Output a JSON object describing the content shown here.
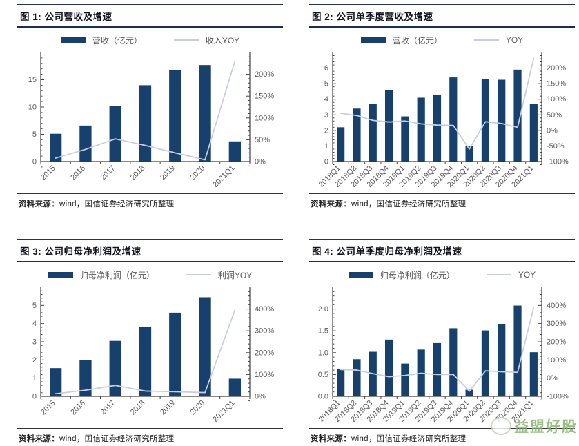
{
  "colors": {
    "bar": "#17406D",
    "line": "#C9CDE2",
    "axis_line": "#404040",
    "axis_text": "#595959",
    "watermark_green": "#7FAE66"
  },
  "watermark": {
    "text": "益盟好股"
  },
  "chart_data": [
    {
      "type": "bar",
      "title": "图 1: 公司营收及增速",
      "legend_bar": "营收（亿元）",
      "legend_line": "收入YOY",
      "categories": [
        "2015",
        "2016",
        "2017",
        "2018",
        "2019",
        "2020",
        "2021Q1"
      ],
      "series": [
        {
          "name": "营收（亿元）",
          "type": "bar",
          "axis": "left",
          "values": [
            5.1,
            6.6,
            10.2,
            14.0,
            16.8,
            17.7,
            3.7
          ]
        },
        {
          "name": "收入YOY",
          "type": "line",
          "axis": "right",
          "values": [
            8,
            28,
            52,
            37,
            20,
            4,
            230
          ]
        }
      ],
      "left_axis": {
        "min": 0,
        "max": 20,
        "step": 5,
        "minor": 1,
        "decimals": 0
      },
      "right_axis": {
        "min": 0,
        "max": 250,
        "step": 50,
        "minor": 10,
        "format": "percent"
      },
      "source_label": "资料来源：",
      "source_text": "wind，国信证券经济研究所整理"
    },
    {
      "type": "bar",
      "title": "图 2: 公司单季度营收及增速",
      "legend_bar": "营收（亿元）",
      "legend_line": "YOY",
      "categories": [
        "2018Q1",
        "2018Q2",
        "2018Q3",
        "2018Q4",
        "2019Q1",
        "2019Q2",
        "2019Q3",
        "2019Q4",
        "2020Q1",
        "2020Q2",
        "2020Q3",
        "2020Q4",
        "2021Q1"
      ],
      "series": [
        {
          "name": "营收（亿元）",
          "type": "bar",
          "axis": "left",
          "values": [
            2.2,
            3.4,
            3.7,
            4.6,
            2.9,
            4.1,
            4.3,
            5.4,
            1.0,
            5.3,
            5.25,
            5.9,
            3.7
          ]
        },
        {
          "name": "YOY",
          "type": "line",
          "axis": "right",
          "values": [
            55,
            48,
            32,
            27,
            30,
            21,
            17,
            16,
            -60,
            28,
            22,
            10,
            232
          ]
        }
      ],
      "left_axis": {
        "min": 0,
        "max": 7,
        "step": 1,
        "minor": 0.2,
        "decimals": 0
      },
      "right_axis": {
        "min": -100,
        "max": 250,
        "step": 50,
        "minor": 10,
        "format": "percent"
      },
      "source_label": "资料来源：",
      "source_text": "wind，国信证券经济研究所整理"
    },
    {
      "type": "bar",
      "title": "图 3: 公司归母净利润及增速",
      "legend_bar": "归母净利润（亿元）",
      "legend_line": "利润YOY",
      "categories": [
        "2015",
        "2016",
        "2017",
        "2018",
        "2019",
        "2020",
        "2021Q1"
      ],
      "series": [
        {
          "name": "归母净利润（亿元）",
          "type": "bar",
          "axis": "left",
          "values": [
            1.55,
            2.0,
            3.05,
            3.8,
            4.6,
            5.45,
            0.97
          ]
        },
        {
          "name": "利润YOY",
          "type": "line",
          "axis": "right",
          "values": [
            12,
            28,
            50,
            24,
            21,
            17,
            395
          ]
        }
      ],
      "left_axis": {
        "min": 0,
        "max": 6,
        "step": 1,
        "minor": 0.2,
        "decimals": 0
      },
      "right_axis": {
        "min": 0,
        "max": 500,
        "step": 100,
        "minor": 20,
        "format": "percent"
      },
      "source_label": "资料来源：",
      "source_text": "wind，国信证券经济研究所整理"
    },
    {
      "type": "bar",
      "title": "图 4: 公司单季度归母净利润及增速",
      "legend_bar": "归母净利润（亿元）",
      "legend_line": "YOY",
      "categories": [
        "2018Q1",
        "2018Q2",
        "2018Q3",
        "2018Q4",
        "2019Q1",
        "2019Q2",
        "2019Q3",
        "2019Q4",
        "2020Q1",
        "2020Q2",
        "2020Q3",
        "2020Q4",
        "2021Q1"
      ],
      "series": [
        {
          "name": "归母净利润（亿元）",
          "type": "bar",
          "axis": "left",
          "values": [
            0.62,
            0.85,
            1.02,
            1.3,
            0.75,
            1.07,
            1.22,
            1.56,
            0.15,
            1.51,
            1.66,
            2.08,
            1.01
          ]
        },
        {
          "name": "YOY",
          "type": "line",
          "axis": "right",
          "values": [
            47,
            44,
            25,
            8,
            15,
            27,
            20,
            20,
            -72,
            40,
            35,
            32,
            390
          ]
        }
      ],
      "left_axis": {
        "min": 0,
        "max": 2.5,
        "step": 0.5,
        "minor": 0.1,
        "decimals": 1
      },
      "right_axis": {
        "min": -100,
        "max": 500,
        "step": 100,
        "minor": 20,
        "format": "percent"
      },
      "source_label": "资料来源：",
      "source_text": "wind，国信证券经济研究所整理"
    }
  ]
}
